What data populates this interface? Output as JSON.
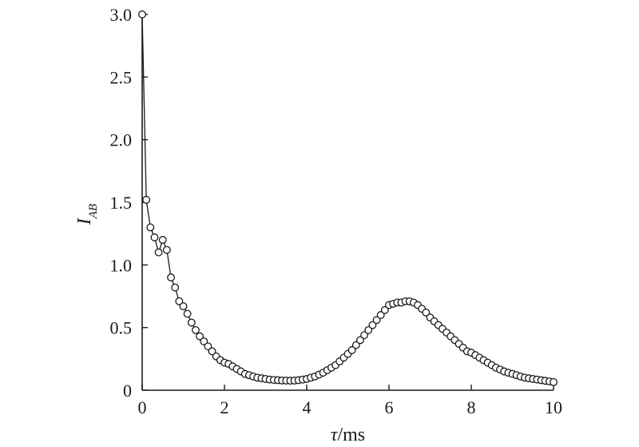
{
  "chart_data": {
    "type": "line",
    "title": "",
    "xlabel": {
      "main": "τ",
      "rest": "/ms"
    },
    "ylabel": {
      "main": "I",
      "sub": "AB"
    },
    "xlim": [
      0,
      10
    ],
    "ylim": [
      0,
      3.0
    ],
    "xticks": [
      0,
      2,
      4,
      6,
      8,
      10
    ],
    "xtick_labels": [
      "0",
      "2",
      "4",
      "6",
      "8",
      "10"
    ],
    "yticks": [
      0,
      0.5,
      1.0,
      1.5,
      2.0,
      2.5,
      3.0
    ],
    "ytick_labels": [
      "0",
      "0.5",
      "1.0",
      "1.5",
      "2.0",
      "2.5",
      "3.0"
    ],
    "grid": false,
    "legend": "none",
    "marker": "open-circle",
    "color": "#1a1a1a",
    "series": [
      {
        "x": [
          0.0,
          0.1,
          0.2,
          0.3,
          0.4,
          0.5,
          0.6,
          0.7,
          0.8,
          0.9,
          1.0,
          1.1,
          1.2,
          1.3,
          1.4,
          1.5,
          1.6,
          1.7,
          1.8,
          1.9,
          2.0,
          2.1,
          2.2,
          2.3,
          2.4,
          2.5,
          2.6,
          2.7,
          2.8,
          2.9,
          3.0,
          3.1,
          3.2,
          3.3,
          3.4,
          3.5,
          3.6,
          3.7,
          3.8,
          3.9,
          4.0,
          4.1,
          4.2,
          4.3,
          4.4,
          4.5,
          4.6,
          4.7,
          4.8,
          4.9,
          5.0,
          5.1,
          5.2,
          5.3,
          5.4,
          5.5,
          5.6,
          5.7,
          5.8,
          5.9,
          6.0,
          6.1,
          6.2,
          6.3,
          6.4,
          6.5,
          6.6,
          6.7,
          6.8,
          6.9,
          7.0,
          7.1,
          7.2,
          7.3,
          7.4,
          7.5,
          7.6,
          7.7,
          7.8,
          7.9,
          8.0,
          8.1,
          8.2,
          8.3,
          8.4,
          8.5,
          8.6,
          8.7,
          8.8,
          8.9,
          9.0,
          9.1,
          9.2,
          9.3,
          9.4,
          9.5,
          9.6,
          9.7,
          9.8,
          9.9,
          10.0
        ],
        "y": [
          3.0,
          1.52,
          1.3,
          1.22,
          1.1,
          1.2,
          1.12,
          0.9,
          0.82,
          0.71,
          0.67,
          0.61,
          0.54,
          0.48,
          0.43,
          0.39,
          0.35,
          0.31,
          0.27,
          0.24,
          0.22,
          0.21,
          0.19,
          0.17,
          0.15,
          0.13,
          0.12,
          0.11,
          0.1,
          0.095,
          0.09,
          0.085,
          0.082,
          0.08,
          0.078,
          0.077,
          0.076,
          0.077,
          0.08,
          0.085,
          0.09,
          0.1,
          0.11,
          0.125,
          0.14,
          0.16,
          0.18,
          0.2,
          0.23,
          0.26,
          0.29,
          0.32,
          0.36,
          0.4,
          0.44,
          0.48,
          0.52,
          0.56,
          0.6,
          0.64,
          0.68,
          0.69,
          0.7,
          0.7,
          0.71,
          0.71,
          0.7,
          0.68,
          0.65,
          0.62,
          0.58,
          0.55,
          0.52,
          0.49,
          0.46,
          0.43,
          0.4,
          0.37,
          0.34,
          0.31,
          0.3,
          0.28,
          0.26,
          0.24,
          0.22,
          0.2,
          0.18,
          0.165,
          0.15,
          0.14,
          0.13,
          0.12,
          0.11,
          0.1,
          0.095,
          0.09,
          0.085,
          0.08,
          0.075,
          0.07,
          0.065
        ]
      }
    ]
  }
}
